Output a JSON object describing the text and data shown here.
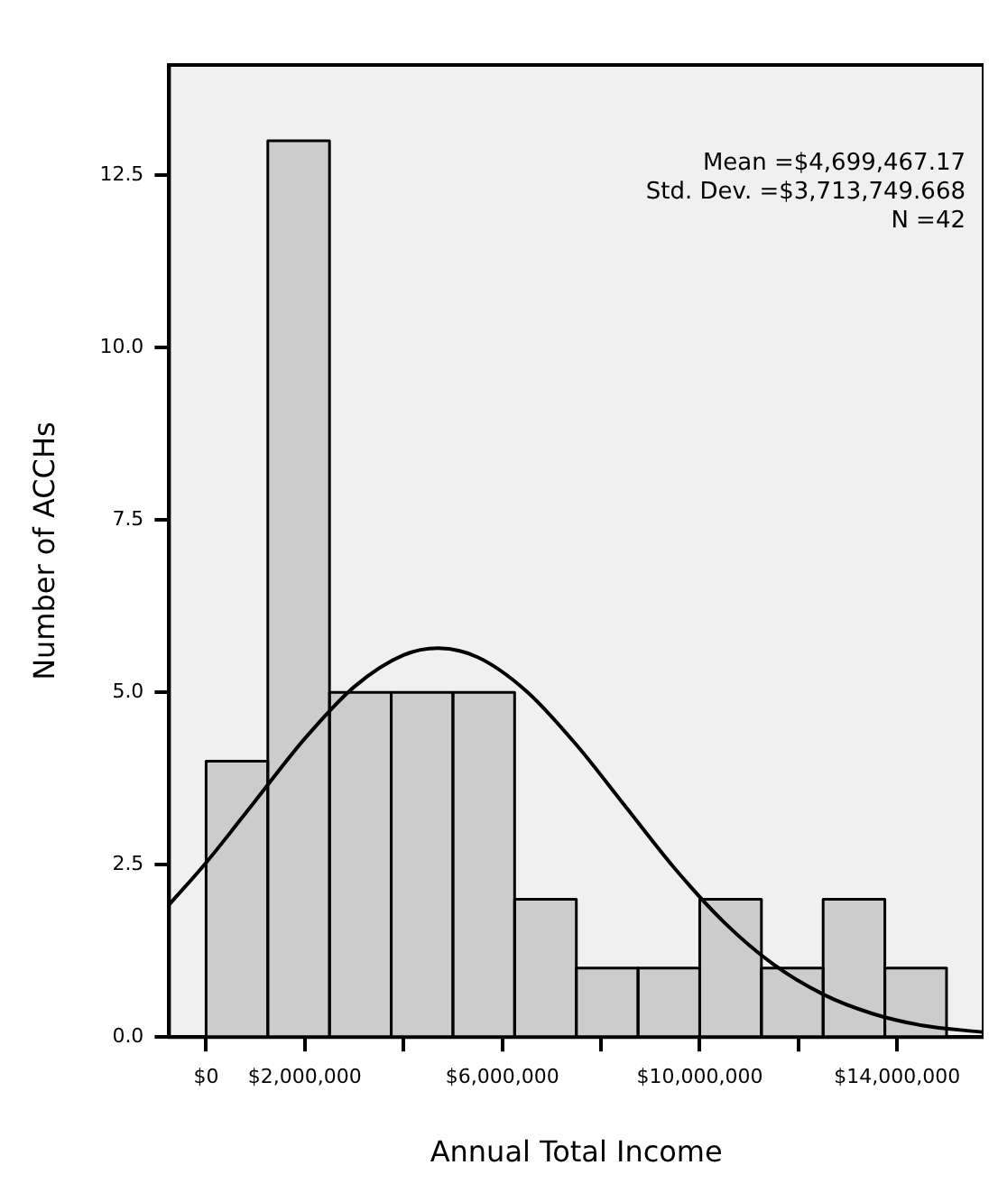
{
  "chart_data": {
    "type": "histogram",
    "xlabel": "Annual Total Income",
    "ylabel": "Number of ACCHs",
    "bins": [
      0,
      1250000,
      2500000,
      3750000,
      5000000,
      6250000,
      7500000,
      8750000,
      10000000,
      11250000,
      12500000,
      13750000,
      15000000
    ],
    "values": [
      4,
      13,
      5,
      5,
      5,
      2,
      1,
      1,
      2,
      1,
      2,
      1
    ],
    "color": "#cccccc",
    "series": [
      {
        "type": "line",
        "color": "#000000",
        "x": [
          -750000,
          0,
          1000000,
          2000000,
          3000000,
          4000000,
          4700000,
          5500000,
          6500000,
          7500000,
          8500000,
          9500000,
          10500000,
          11500000,
          12500000,
          13500000,
          14500000,
          15750000
        ],
        "values": [
          1.92,
          2.53,
          3.43,
          4.33,
          5.08,
          5.54,
          5.64,
          5.51,
          5.01,
          4.24,
          3.34,
          2.44,
          1.66,
          1.05,
          0.62,
          0.34,
          0.17,
          0.07
        ]
      }
    ],
    "xlim": [
      -750000,
      15750000
    ],
    "xticks": [
      {
        "value": 0,
        "label": "$0"
      },
      {
        "value": 2000000,
        "label": "$2,000,000"
      },
      {
        "value": 4000000,
        "label": null
      },
      {
        "value": 6000000,
        "label": "$6,000,000"
      },
      {
        "value": 8000000,
        "label": null
      },
      {
        "value": 10000000,
        "label": "$10,000,000"
      },
      {
        "value": 12000000,
        "label": null
      },
      {
        "value": 14000000,
        "label": "$14,000,000"
      }
    ],
    "ylim": [
      0,
      14.1
    ],
    "yticks": [
      {
        "value": 0,
        "label": "0.0"
      },
      {
        "value": 2.5,
        "label": "2.5"
      },
      {
        "value": 5,
        "label": "5.0"
      },
      {
        "value": 7.5,
        "label": "7.5"
      },
      {
        "value": 10,
        "label": "10.0"
      },
      {
        "value": 12.5,
        "label": "12.5"
      }
    ],
    "grid": false,
    "annotations": [
      "Mean =$4,699,467.17",
      "Std. Dev. =$3,713,749.668",
      "N =42"
    ]
  }
}
